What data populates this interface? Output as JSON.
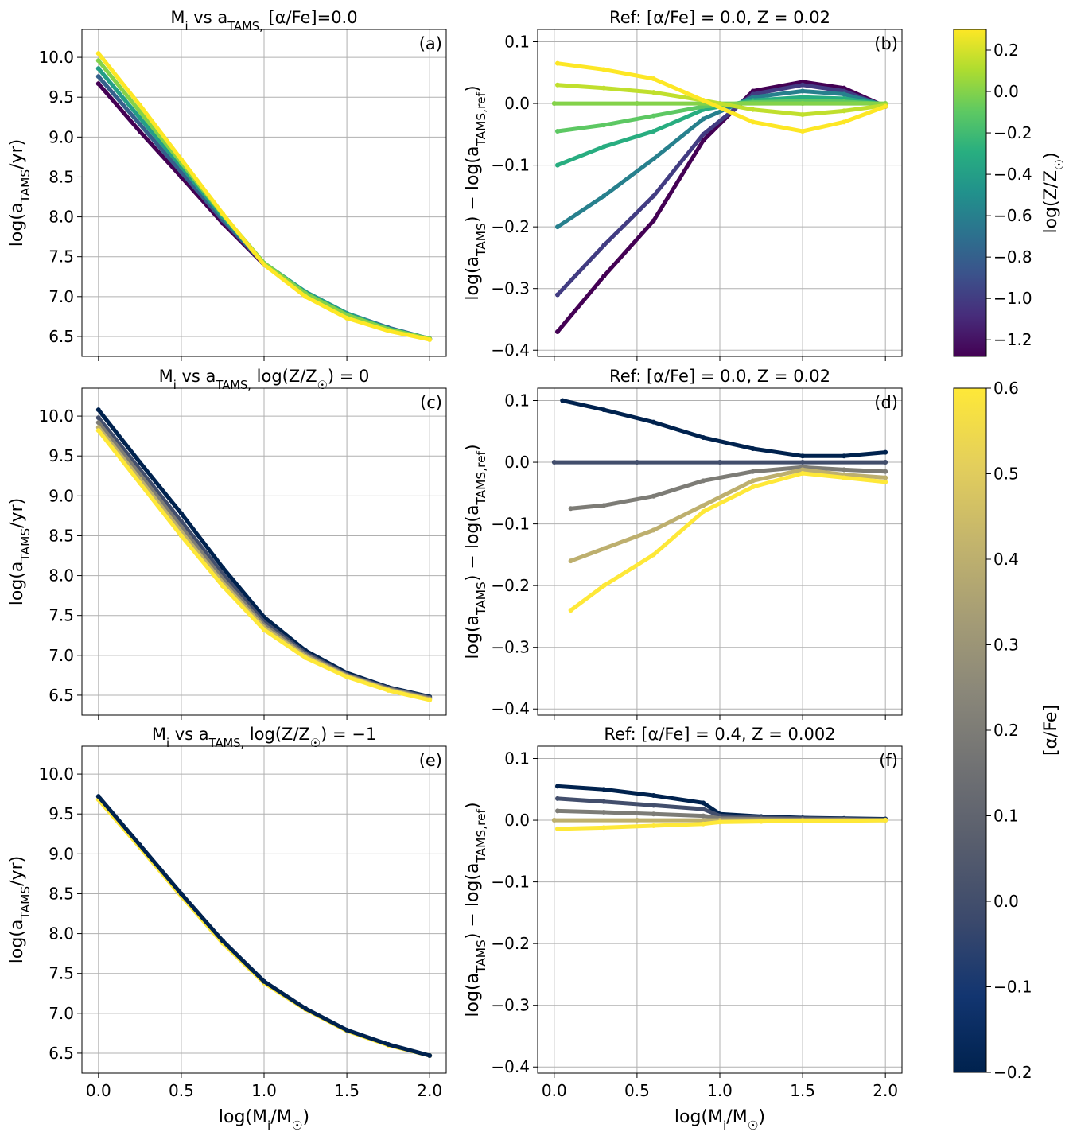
{
  "figure": {
    "x_axis_label": "log(M_i/M_☉)",
    "x_axis_label_left": "log(M_i/M_☉)",
    "x_axis_label_right": "log(M_i/M_☉)",
    "xticks": [
      "0.0",
      "0.5",
      "1.0",
      "1.5",
      "2.0"
    ]
  },
  "colorbars": [
    {
      "label": "log(Z/Z_☉)",
      "colormap": "viridis",
      "range": [
        -1.28,
        0.3
      ],
      "ticks": [
        "0.2",
        "0.0",
        "−0.2",
        "−0.4",
        "−0.6",
        "−0.8",
        "−1.0",
        "−1.2"
      ],
      "tick_values": [
        0.2,
        0.0,
        -0.2,
        -0.4,
        -0.6,
        -0.8,
        -1.0,
        -1.2
      ],
      "stops": [
        "#440154",
        "#472d7b",
        "#3b528b",
        "#2c728e",
        "#21918c",
        "#28ae80",
        "#5ec962",
        "#addc30",
        "#fde725"
      ]
    },
    {
      "label": "[α/Fe]",
      "colormap": "cividis",
      "range": [
        -0.2,
        0.6
      ],
      "ticks": [
        "0.6",
        "0.5",
        "0.4",
        "0.3",
        "0.2",
        "0.1",
        "0.0",
        "−0.1",
        "−0.2"
      ],
      "tick_values": [
        0.6,
        0.5,
        0.4,
        0.3,
        0.2,
        0.1,
        0.0,
        -0.1,
        -0.2
      ],
      "stops": [
        "#00224e",
        "#123570",
        "#3b496c",
        "#575d6d",
        "#707173",
        "#8a8779",
        "#a69d75",
        "#c4b56c",
        "#e4cf5b",
        "#fee838"
      ]
    }
  ],
  "chart_data": [
    {
      "id": "a",
      "type": "scatter",
      "panel_label": "(a)",
      "title": "M_i vs a_TAMS, [α/Fe]=0.0",
      "xlabel": "log(M_i/M_☉)",
      "ylabel": "log(a_TAMS/yr)",
      "xlim": [
        -0.1,
        2.1
      ],
      "ylim": [
        6.25,
        10.35
      ],
      "yticks": [
        "10.0",
        "9.5",
        "9.0",
        "8.5",
        "8.0",
        "7.5",
        "7.0",
        "6.5"
      ],
      "ytick_values": [
        10.0,
        9.5,
        9.0,
        8.5,
        8.0,
        7.5,
        7.0,
        6.5
      ],
      "colorbar": 0,
      "series": [
        {
          "name": "log(Z/Z☉)=-1.28",
          "value": -1.28,
          "x": [
            0.0,
            0.25,
            0.5,
            0.75,
            1.0,
            1.25,
            1.5,
            1.75,
            2.0
          ],
          "y": [
            9.67,
            9.07,
            8.5,
            7.92,
            7.4,
            7.05,
            6.78,
            6.6,
            6.47
          ]
        },
        {
          "name": "log(Z/Z☉)=-0.8",
          "value": -0.8,
          "x": [
            0.0,
            0.25,
            0.5,
            0.75,
            1.0,
            1.25,
            1.5,
            1.75,
            2.0
          ],
          "y": [
            9.76,
            9.16,
            8.56,
            7.96,
            7.41,
            7.06,
            6.79,
            6.61,
            6.47
          ]
        },
        {
          "name": "log(Z/Z☉)=-0.4",
          "value": -0.4,
          "x": [
            0.0,
            0.25,
            0.5,
            0.75,
            1.0,
            1.25,
            1.5,
            1.75,
            2.0
          ],
          "y": [
            9.86,
            9.24,
            8.63,
            8.0,
            7.42,
            7.06,
            6.79,
            6.6,
            6.47
          ]
        },
        {
          "name": "log(Z/Z☉)=0.0",
          "value": 0.0,
          "x": [
            0.0,
            0.25,
            0.5,
            0.75,
            1.0,
            1.25,
            1.5,
            1.75,
            2.0
          ],
          "y": [
            9.96,
            9.32,
            8.68,
            8.03,
            7.42,
            7.04,
            6.77,
            6.59,
            6.47
          ]
        },
        {
          "name": "log(Z/Z☉)=0.3",
          "value": 0.3,
          "x": [
            0.0,
            0.25,
            0.5,
            0.75,
            1.0,
            1.25,
            1.5,
            1.75,
            2.0
          ],
          "y": [
            10.05,
            9.4,
            8.72,
            8.04,
            7.4,
            7.0,
            6.73,
            6.57,
            6.46
          ]
        }
      ]
    },
    {
      "id": "b",
      "type": "scatter",
      "panel_label": "(b)",
      "title": "Ref: [α/Fe] = 0.0, Z = 0.02",
      "xlabel": "log(M_i/M_☉)",
      "ylabel": "log(a_TAMS) − log(a_TAMS,ref)",
      "xlim": [
        -0.1,
        2.1
      ],
      "ylim": [
        -0.41,
        0.12
      ],
      "yticks": [
        "0.1",
        "0.0",
        "−0.1",
        "−0.2",
        "−0.3",
        "−0.4"
      ],
      "ytick_values": [
        0.1,
        0.0,
        -0.1,
        -0.2,
        -0.3,
        -0.4
      ],
      "colorbar": 0,
      "series": [
        {
          "name": "log(Z/Z☉)=-1.28",
          "value": -1.28,
          "x": [
            0.02,
            0.3,
            0.6,
            0.9,
            1.2,
            1.5,
            1.75,
            2.0
          ],
          "y": [
            -0.37,
            -0.28,
            -0.19,
            -0.06,
            0.02,
            0.035,
            0.025,
            -0.005
          ]
        },
        {
          "name": "log(Z/Z☉)=-1.0",
          "value": -1.0,
          "x": [
            0.02,
            0.3,
            0.6,
            0.9,
            1.2,
            1.5,
            1.75,
            2.0
          ],
          "y": [
            -0.31,
            -0.23,
            -0.15,
            -0.05,
            0.015,
            0.03,
            0.02,
            -0.005
          ]
        },
        {
          "name": "log(Z/Z☉)=-0.6",
          "value": -0.6,
          "x": [
            0.02,
            0.3,
            0.6,
            0.9,
            1.2,
            1.5,
            1.75,
            2.0
          ],
          "y": [
            -0.2,
            -0.15,
            -0.09,
            -0.025,
            0.01,
            0.02,
            0.015,
            -0.003
          ]
        },
        {
          "name": "log(Z/Z☉)=-0.3",
          "value": -0.3,
          "x": [
            0.02,
            0.3,
            0.6,
            0.9,
            1.2,
            1.5,
            1.75,
            2.0
          ],
          "y": [
            -0.1,
            -0.07,
            -0.045,
            -0.01,
            0.005,
            0.01,
            0.008,
            -0.002
          ]
        },
        {
          "name": "log(Z/Z☉)=-0.1",
          "value": -0.1,
          "x": [
            0.02,
            0.3,
            0.6,
            0.9,
            1.2,
            1.5,
            1.75,
            2.0
          ],
          "y": [
            -0.045,
            -0.035,
            -0.02,
            -0.005,
            0.002,
            0.004,
            0.003,
            -0.001
          ]
        },
        {
          "name": "log(Z/Z☉)=0.0",
          "value": 0.0,
          "x": [
            0.0,
            0.5,
            1.0,
            1.5,
            2.0
          ],
          "y": [
            0.0,
            0.0,
            0.0,
            0.0,
            0.0
          ]
        },
        {
          "name": "log(Z/Z☉)=0.15",
          "value": 0.15,
          "x": [
            0.02,
            0.3,
            0.6,
            0.9,
            1.2,
            1.5,
            1.75,
            2.0
          ],
          "y": [
            0.03,
            0.025,
            0.018,
            0.005,
            -0.01,
            -0.018,
            -0.012,
            -0.003
          ]
        },
        {
          "name": "log(Z/Z☉)=0.3",
          "value": 0.3,
          "x": [
            0.02,
            0.3,
            0.6,
            0.9,
            1.2,
            1.5,
            1.75,
            2.0
          ],
          "y": [
            0.065,
            0.055,
            0.04,
            0.005,
            -0.03,
            -0.045,
            -0.03,
            -0.005
          ]
        }
      ]
    },
    {
      "id": "c",
      "type": "scatter",
      "panel_label": "(c)",
      "title": "M_i vs a_TAMS, log(Z/Z_☉) = 0",
      "xlabel": "log(M_i/M_☉)",
      "ylabel": "log(a_TAMS/yr)",
      "xlim": [
        -0.1,
        2.1
      ],
      "ylim": [
        6.25,
        10.35
      ],
      "yticks": [
        "10.0",
        "9.5",
        "9.0",
        "8.5",
        "8.0",
        "7.5",
        "7.0",
        "6.5"
      ],
      "ytick_values": [
        10.0,
        9.5,
        9.0,
        8.5,
        8.0,
        7.5,
        7.0,
        6.5
      ],
      "colorbar": 1,
      "series": [
        {
          "name": "[α/Fe]=-0.2",
          "value": -0.2,
          "x": [
            0.0,
            0.25,
            0.5,
            0.75,
            1.0,
            1.25,
            1.5,
            1.75,
            2.0
          ],
          "y": [
            10.08,
            9.42,
            8.78,
            8.1,
            7.48,
            7.06,
            6.78,
            6.6,
            6.48
          ]
        },
        {
          "name": "[α/Fe]=0.0",
          "value": 0.0,
          "x": [
            0.0,
            0.25,
            0.5,
            0.75,
            1.0,
            1.25,
            1.5,
            1.75,
            2.0
          ],
          "y": [
            9.98,
            9.33,
            8.68,
            8.02,
            7.42,
            7.03,
            6.76,
            6.59,
            6.47
          ]
        },
        {
          "name": "[α/Fe]=0.2",
          "value": 0.2,
          "x": [
            0.0,
            0.25,
            0.5,
            0.75,
            1.0,
            1.25,
            1.5,
            1.75,
            2.0
          ],
          "y": [
            9.92,
            9.27,
            8.61,
            7.96,
            7.38,
            7.01,
            6.75,
            6.58,
            6.46
          ]
        },
        {
          "name": "[α/Fe]=0.4",
          "value": 0.4,
          "x": [
            0.0,
            0.25,
            0.5,
            0.75,
            1.0,
            1.25,
            1.5,
            1.75,
            2.0
          ],
          "y": [
            9.86,
            9.21,
            8.55,
            7.91,
            7.35,
            6.99,
            6.74,
            6.57,
            6.45
          ]
        },
        {
          "name": "[α/Fe]=0.6",
          "value": 0.6,
          "x": [
            0.0,
            0.25,
            0.5,
            0.75,
            1.0,
            1.25,
            1.5,
            1.75,
            2.0
          ],
          "y": [
            9.82,
            9.16,
            8.5,
            7.87,
            7.32,
            6.97,
            6.73,
            6.56,
            6.44
          ]
        }
      ]
    },
    {
      "id": "d",
      "type": "scatter",
      "panel_label": "(d)",
      "title": "Ref: [α/Fe] = 0.0, Z = 0.02",
      "xlabel": "log(M_i/M_☉)",
      "ylabel": "log(a_TAMS) − log(a_TAMS,ref)",
      "xlim": [
        -0.1,
        2.1
      ],
      "ylim": [
        -0.41,
        0.12
      ],
      "yticks": [
        "0.1",
        "0.0",
        "−0.1",
        "−0.2",
        "−0.3",
        "−0.4"
      ],
      "ytick_values": [
        0.1,
        0.0,
        -0.1,
        -0.2,
        -0.3,
        -0.4
      ],
      "colorbar": 1,
      "series": [
        {
          "name": "[α/Fe]=-0.2",
          "value": -0.2,
          "x": [
            0.05,
            0.3,
            0.6,
            0.9,
            1.2,
            1.5,
            1.75,
            2.0
          ],
          "y": [
            0.1,
            0.085,
            0.065,
            0.04,
            0.022,
            0.01,
            0.01,
            0.016
          ]
        },
        {
          "name": "[α/Fe]=0.0",
          "value": 0.0,
          "x": [
            0.0,
            0.5,
            1.0,
            1.5,
            2.0
          ],
          "y": [
            0.0,
            0.0,
            0.0,
            0.0,
            0.0
          ]
        },
        {
          "name": "[α/Fe]=0.2",
          "value": 0.2,
          "x": [
            0.1,
            0.3,
            0.6,
            0.9,
            1.2,
            1.5,
            1.75,
            2.0
          ],
          "y": [
            -0.075,
            -0.07,
            -0.055,
            -0.03,
            -0.015,
            -0.008,
            -0.012,
            -0.015
          ]
        },
        {
          "name": "[α/Fe]=0.4",
          "value": 0.4,
          "x": [
            0.1,
            0.3,
            0.6,
            0.9,
            1.2,
            1.5,
            1.75,
            2.0
          ],
          "y": [
            -0.16,
            -0.14,
            -0.11,
            -0.07,
            -0.03,
            -0.012,
            -0.02,
            -0.025
          ]
        },
        {
          "name": "[α/Fe]=0.6",
          "value": 0.6,
          "x": [
            0.1,
            0.3,
            0.6,
            0.9,
            1.2,
            1.5,
            1.75,
            2.0
          ],
          "y": [
            -0.24,
            -0.2,
            -0.15,
            -0.08,
            -0.04,
            -0.018,
            -0.025,
            -0.032
          ]
        }
      ]
    },
    {
      "id": "e",
      "type": "scatter",
      "panel_label": "(e)",
      "title": "M_i vs a_TAMS, log(Z/Z_☉) = −1",
      "xlabel": "log(M_i/M_☉)",
      "ylabel": "log(a_TAMS/yr)",
      "xlim": [
        -0.1,
        2.1
      ],
      "ylim": [
        6.25,
        10.35
      ],
      "yticks": [
        "10.0",
        "9.5",
        "9.0",
        "8.5",
        "8.0",
        "7.5",
        "7.0",
        "6.5"
      ],
      "ytick_values": [
        10.0,
        9.5,
        9.0,
        8.5,
        8.0,
        7.5,
        7.0,
        6.5
      ],
      "colorbar": 1,
      "series": [
        {
          "name": "[α/Fe]=0.6",
          "value": 0.6,
          "x": [
            0.0,
            0.25,
            0.5,
            0.75,
            1.0,
            1.25,
            1.5,
            1.75,
            2.0
          ],
          "y": [
            9.68,
            9.08,
            8.47,
            7.88,
            7.38,
            7.05,
            6.78,
            6.6,
            6.47
          ]
        },
        {
          "name": "[α/Fe]=-0.2",
          "value": -0.2,
          "x": [
            0.0,
            0.25,
            0.5,
            0.75,
            1.0,
            1.25,
            1.5,
            1.75,
            2.0
          ],
          "y": [
            9.72,
            9.11,
            8.5,
            7.91,
            7.4,
            7.06,
            6.79,
            6.61,
            6.47
          ]
        }
      ]
    },
    {
      "id": "f",
      "type": "scatter",
      "panel_label": "(f)",
      "title": "Ref: [α/Fe] = 0.4, Z = 0.002",
      "xlabel": "log(M_i/M_☉)",
      "ylabel": "log(a_TAMS) − log(a_TAMS,ref)",
      "xlim": [
        -0.1,
        2.1
      ],
      "ylim": [
        -0.41,
        0.12
      ],
      "yticks": [
        "0.1",
        "0.0",
        "−0.1",
        "−0.2",
        "−0.3",
        "−0.4"
      ],
      "ytick_values": [
        0.1,
        0.0,
        -0.1,
        -0.2,
        -0.3,
        -0.4
      ],
      "colorbar": 1,
      "series": [
        {
          "name": "[α/Fe]=-0.2",
          "value": -0.2,
          "x": [
            0.02,
            0.3,
            0.6,
            0.9,
            1.0,
            1.25,
            1.5,
            1.75,
            2.0
          ],
          "y": [
            0.055,
            0.05,
            0.04,
            0.028,
            0.01,
            0.006,
            0.004,
            0.003,
            0.002
          ]
        },
        {
          "name": "[α/Fe]=0.0",
          "value": 0.0,
          "x": [
            0.02,
            0.3,
            0.6,
            0.9,
            1.0,
            1.25,
            1.5,
            1.75,
            2.0
          ],
          "y": [
            0.035,
            0.03,
            0.024,
            0.018,
            0.007,
            0.004,
            0.003,
            0.002,
            0.001
          ]
        },
        {
          "name": "[α/Fe]=0.2",
          "value": 0.2,
          "x": [
            0.02,
            0.3,
            0.6,
            0.9,
            1.0,
            1.25,
            1.5,
            1.75,
            2.0
          ],
          "y": [
            0.015,
            0.013,
            0.01,
            0.007,
            0.003,
            0.002,
            0.001,
            0.001,
            0.0
          ]
        },
        {
          "name": "[α/Fe]=0.4",
          "value": 0.4,
          "x": [
            0.0,
            0.5,
            1.0,
            1.5,
            2.0
          ],
          "y": [
            0.0,
            0.0,
            0.0,
            0.0,
            0.0
          ]
        },
        {
          "name": "[α/Fe]=0.6",
          "value": 0.6,
          "x": [
            0.02,
            0.3,
            0.6,
            0.9,
            1.0,
            1.25,
            1.5,
            1.75,
            2.0
          ],
          "y": [
            -0.014,
            -0.012,
            -0.009,
            -0.006,
            -0.003,
            -0.002,
            -0.001,
            -0.001,
            0.0
          ]
        }
      ]
    }
  ]
}
